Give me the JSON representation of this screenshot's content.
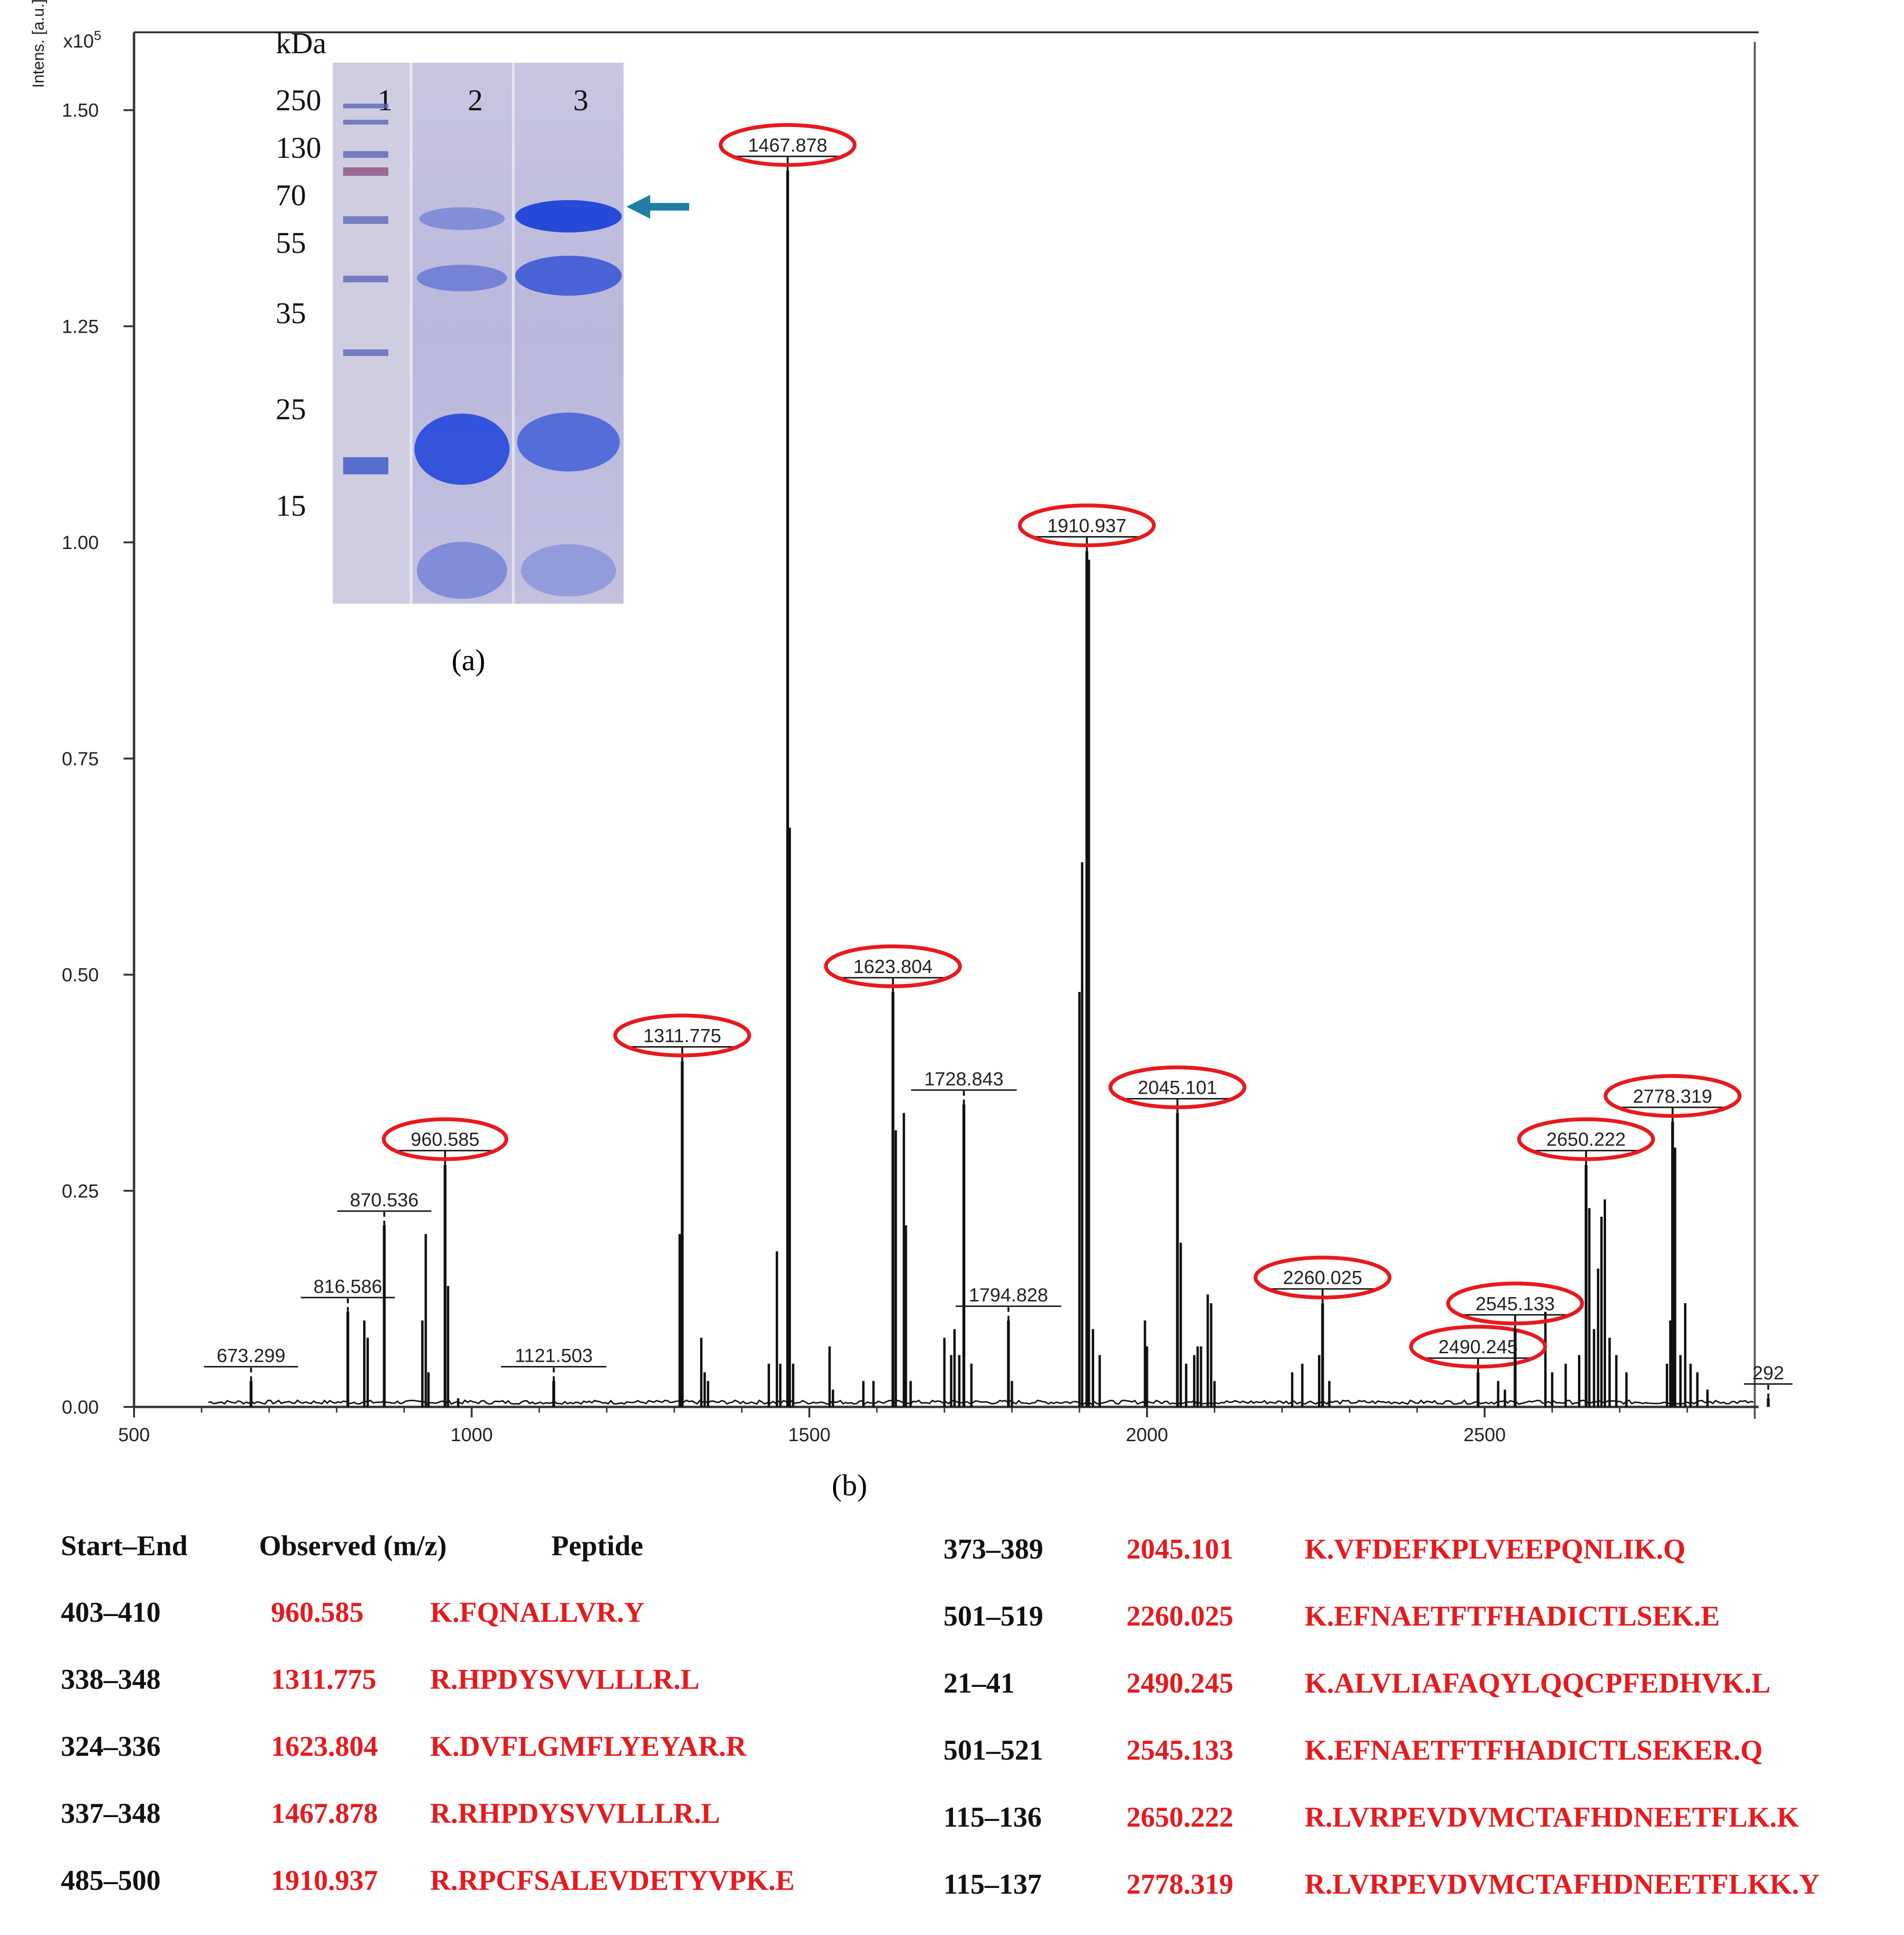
{
  "chart_data": {
    "type": "line",
    "title": "",
    "ylabel": "Intens. [a.u.]",
    "y_multiplier": "x10^5",
    "y_multiplier_base": "x10",
    "y_multiplier_exp": "5",
    "xlim": [
      500,
      2900
    ],
    "ylim": [
      0,
      1.59
    ],
    "x_ticks": [
      500,
      1000,
      1500,
      2000,
      2500
    ],
    "x_tick_labels": [
      "500",
      "1000",
      "1500",
      "2000",
      "2500"
    ],
    "y_ticks": [
      0,
      0.25,
      0.5,
      0.75,
      1.0,
      1.25,
      1.5
    ],
    "y_tick_labels": [
      "0.00",
      "0.25",
      "0.50",
      "0.75",
      "1.00",
      "1.25",
      "1.50"
    ],
    "peaks": [
      {
        "mz": 673.299,
        "intensity": 0.03,
        "label": "673.299",
        "circled": false
      },
      {
        "mz": 816.586,
        "intensity": 0.11,
        "label": "816.586",
        "circled": false
      },
      {
        "mz": 870.536,
        "intensity": 0.21,
        "label": "870.536",
        "circled": false
      },
      {
        "mz": 960.585,
        "intensity": 0.28,
        "label": "960.585",
        "circled": true
      },
      {
        "mz": 1121.503,
        "intensity": 0.03,
        "label": "1121.503",
        "circled": false
      },
      {
        "mz": 1311.775,
        "intensity": 0.4,
        "label": "1311.775",
        "circled": true
      },
      {
        "mz": 1467.878,
        "intensity": 1.43,
        "label": "1467.878",
        "circled": true
      },
      {
        "mz": 1623.804,
        "intensity": 0.48,
        "label": "1623.804",
        "circled": true
      },
      {
        "mz": 1728.843,
        "intensity": 0.35,
        "label": "1728.843",
        "circled": false
      },
      {
        "mz": 1794.828,
        "intensity": 0.1,
        "label": "1794.828",
        "circled": false
      },
      {
        "mz": 1910.937,
        "intensity": 0.99,
        "label": "1910.937",
        "circled": true
      },
      {
        "mz": 2045.101,
        "intensity": 0.34,
        "label": "2045.101",
        "circled": true
      },
      {
        "mz": 2260.025,
        "intensity": 0.12,
        "label": "2260.025",
        "circled": true
      },
      {
        "mz": 2490.245,
        "intensity": 0.04,
        "label": "2490.245",
        "circled": true
      },
      {
        "mz": 2545.133,
        "intensity": 0.09,
        "label": "2545.133",
        "circled": true
      },
      {
        "mz": 2650.222,
        "intensity": 0.28,
        "label": "2650.222",
        "circled": true
      },
      {
        "mz": 2778.319,
        "intensity": 0.33,
        "label": "2778.319",
        "circled": true
      },
      {
        "mz": 2920,
        "intensity": 0.01,
        "label": "292",
        "circled": false
      }
    ],
    "minor_peaks": [
      [
        841,
        0.1
      ],
      [
        846,
        0.08
      ],
      [
        927,
        0.1
      ],
      [
        932,
        0.2
      ],
      [
        936,
        0.04
      ],
      [
        965,
        0.14
      ],
      [
        980,
        0.01
      ],
      [
        1308,
        0.2
      ],
      [
        1340,
        0.08
      ],
      [
        1345,
        0.04
      ],
      [
        1350,
        0.03
      ],
      [
        1440,
        0.05
      ],
      [
        1452,
        0.18
      ],
      [
        1457,
        0.05
      ],
      [
        1471,
        0.67
      ],
      [
        1476,
        0.05
      ],
      [
        1530,
        0.07
      ],
      [
        1535,
        0.02
      ],
      [
        1580,
        0.03
      ],
      [
        1595,
        0.03
      ],
      [
        1628,
        0.32
      ],
      [
        1640,
        0.34
      ],
      [
        1643,
        0.21
      ],
      [
        1650,
        0.03
      ],
      [
        1700,
        0.08
      ],
      [
        1710,
        0.06
      ],
      [
        1715,
        0.09
      ],
      [
        1722,
        0.06
      ],
      [
        1740,
        0.05
      ],
      [
        1800,
        0.03
      ],
      [
        1900,
        0.48
      ],
      [
        1904,
        0.63
      ],
      [
        1914,
        0.98
      ],
      [
        1920,
        0.09
      ],
      [
        1930,
        0.06
      ],
      [
        1997,
        0.1
      ],
      [
        2000,
        0.07
      ],
      [
        2050,
        0.19
      ],
      [
        2058,
        0.05
      ],
      [
        2070,
        0.06
      ],
      [
        2075,
        0.07
      ],
      [
        2080,
        0.07
      ],
      [
        2090,
        0.13
      ],
      [
        2095,
        0.12
      ],
      [
        2100,
        0.03
      ],
      [
        2215,
        0.04
      ],
      [
        2230,
        0.05
      ],
      [
        2255,
        0.06
      ],
      [
        2270,
        0.03
      ],
      [
        2520,
        0.03
      ],
      [
        2530,
        0.02
      ],
      [
        2590,
        0.11
      ],
      [
        2600,
        0.04
      ],
      [
        2620,
        0.05
      ],
      [
        2640,
        0.06
      ],
      [
        2655,
        0.23
      ],
      [
        2662,
        0.09
      ],
      [
        2668,
        0.16
      ],
      [
        2673,
        0.22
      ],
      [
        2678,
        0.24
      ],
      [
        2685,
        0.08
      ],
      [
        2695,
        0.06
      ],
      [
        2710,
        0.04
      ],
      [
        2770,
        0.05
      ],
      [
        2775,
        0.1
      ],
      [
        2782,
        0.3
      ],
      [
        2790,
        0.06
      ],
      [
        2797,
        0.12
      ],
      [
        2805,
        0.05
      ],
      [
        2815,
        0.04
      ],
      [
        2830,
        0.02
      ]
    ]
  },
  "gel": {
    "unit_label": "kDa",
    "markers": [
      "250",
      "130",
      "70",
      "55",
      "35",
      "25",
      "15"
    ],
    "lanes": [
      "1",
      "2",
      "3"
    ],
    "caption": "(a)"
  },
  "spectrum_caption": "(b)",
  "table": {
    "headers": {
      "start_end": "Start–End",
      "observed": "Observed (m/z)",
      "peptide": "Peptide"
    },
    "left_rows": [
      {
        "range": "403–410",
        "mz": "960.585",
        "peptide": "K.FQNALLVR.Y"
      },
      {
        "range": "338–348",
        "mz": "1311.775",
        "peptide": "R.HPDYSVVLLLR.L"
      },
      {
        "range": "324–336",
        "mz": "1623.804",
        "peptide": "K.DVFLGMFLYEYAR.R"
      },
      {
        "range": "337–348",
        "mz": "1467.878",
        "peptide": "R.RHPDYSVVLLLR.L"
      },
      {
        "range": "485–500",
        "mz": "1910.937",
        "peptide": "R.RPCFSALEVDETYVPK.E"
      }
    ],
    "right_rows": [
      {
        "range": "373–389",
        "mz": "2045.101",
        "peptide": "K.VFDEFKPLVEEPQNLIK.Q"
      },
      {
        "range": "501–519",
        "mz": "2260.025",
        "peptide": "K.EFNAETFTFHADICTLSEK.E"
      },
      {
        "range": "21–41",
        "mz": "2490.245",
        "peptide": "K.ALVLIAFAQYLQQCPFEDHVK.L"
      },
      {
        "range": "501–521",
        "mz": "2545.133",
        "peptide": "K.EFNAETFTFHADICTLSEKER.Q"
      },
      {
        "range": "115–136",
        "mz": "2650.222",
        "peptide": "R.LVRPEVDVMCTAFHDNEETFLK.K"
      },
      {
        "range": "115–137",
        "mz": "2778.319",
        "peptide": "R.LVRPEVDVMCTAFHDNEETFLKK.Y"
      }
    ]
  },
  "colors": {
    "highlight": "#e8191d",
    "arrow": "#1f7ea6",
    "gel_band": "#2a52d8"
  }
}
